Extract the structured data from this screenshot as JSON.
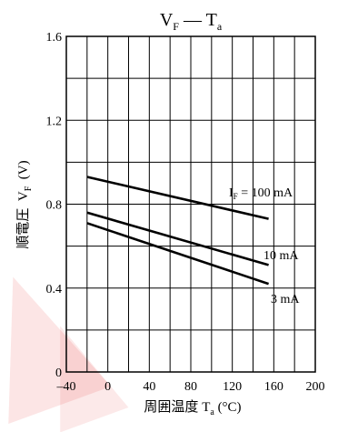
{
  "chart_data": {
    "type": "line",
    "title_main": "V",
    "title_sub1": "F",
    "title_dash": " — ",
    "title_main2": "T",
    "title_sub2": "a",
    "xlabel_text": "周囲温度",
    "xlabel_sym": "T",
    "xlabel_sub": "a",
    "xlabel_unit": "(°C)",
    "ylabel_text": "順電圧",
    "ylabel_sym": "V",
    "ylabel_sub": "F",
    "ylabel_unit": "(V)",
    "xlim": [
      -40,
      200
    ],
    "ylim": [
      0,
      1.6
    ],
    "x_ticks": [
      "–40",
      "0",
      "40",
      "80",
      "120",
      "160",
      "200"
    ],
    "y_ticks": [
      "0",
      "0.4",
      "0.8",
      "1.2",
      "1.6"
    ],
    "x_grid_step": 20,
    "y_grid_step": 0.2,
    "grid": true,
    "series": [
      {
        "name": "I_F = 100 mA",
        "label_main": "I",
        "label_sub": "F",
        "label_rest": " = 100 mA",
        "x": [
          -20,
          155
        ],
        "y": [
          0.93,
          0.73
        ]
      },
      {
        "name": "10 mA",
        "label_main": "",
        "label_sub": "",
        "label_rest": "10 mA",
        "x": [
          -20,
          155
        ],
        "y": [
          0.76,
          0.51
        ]
      },
      {
        "name": "3 mA",
        "label_main": "",
        "label_sub": "",
        "label_rest": "3 mA",
        "x": [
          -20,
          155
        ],
        "y": [
          0.71,
          0.42
        ]
      }
    ]
  }
}
